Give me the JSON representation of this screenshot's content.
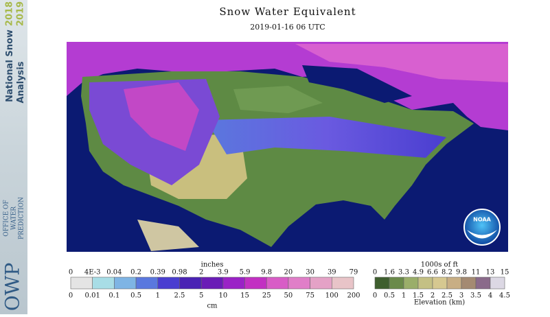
{
  "header": {
    "title": "Snow Water Equivalent",
    "subtitle": "2019-01-16 06 UTC"
  },
  "sidebar": {
    "program_line1": "National Snow",
    "program_line2": "Analysis",
    "years_line1": "2018",
    "years_line2": "2019",
    "office_abbrev": "OWP",
    "office_line1": "OFFICE OF",
    "office_line2": "WATER",
    "office_line3": "PREDICTION"
  },
  "logo": {
    "text": "NOAA"
  },
  "snow_legend": {
    "top_unit": "inches",
    "top_labels": [
      "0",
      "4E-3",
      "0.04",
      "0.2",
      "0.39",
      "0.98",
      "2",
      "3.9",
      "5.9",
      "9.8",
      "20",
      "30",
      "39",
      "79"
    ],
    "bottom_labels": [
      "0",
      "0.01",
      "0.1",
      "0.5",
      "1",
      "2.5",
      "5",
      "10",
      "15",
      "25",
      "50",
      "75",
      "100",
      "200"
    ],
    "bottom_unit": "cm",
    "colors": [
      "#e4e4e4",
      "#a8dde6",
      "#7eb4e4",
      "#5a78de",
      "#4a3ed0",
      "#4a22b4",
      "#6a1cb6",
      "#9a22c6",
      "#c230c2",
      "#d85cc6",
      "#e07ec8",
      "#e4a2c6",
      "#e8c4c8"
    ]
  },
  "elevation_legend": {
    "top_unit": "1000s of ft",
    "top_labels": [
      "0",
      "1.6",
      "3.3",
      "4.9",
      "6.6",
      "8.2",
      "9.8",
      "11",
      "13",
      "15"
    ],
    "bottom_labels": [
      "0",
      "0.5",
      "1",
      "1.5",
      "2",
      "2.5",
      "3",
      "3.5",
      "4",
      "4.5"
    ],
    "bottom_unit": "Elevation (km)",
    "colors": [
      "#3e5e2e",
      "#6a8a4a",
      "#9aae6a",
      "#c4c084",
      "#d6c890",
      "#c8ae84",
      "#a48a72",
      "#8a6a8a",
      "#dcd8e4"
    ]
  }
}
